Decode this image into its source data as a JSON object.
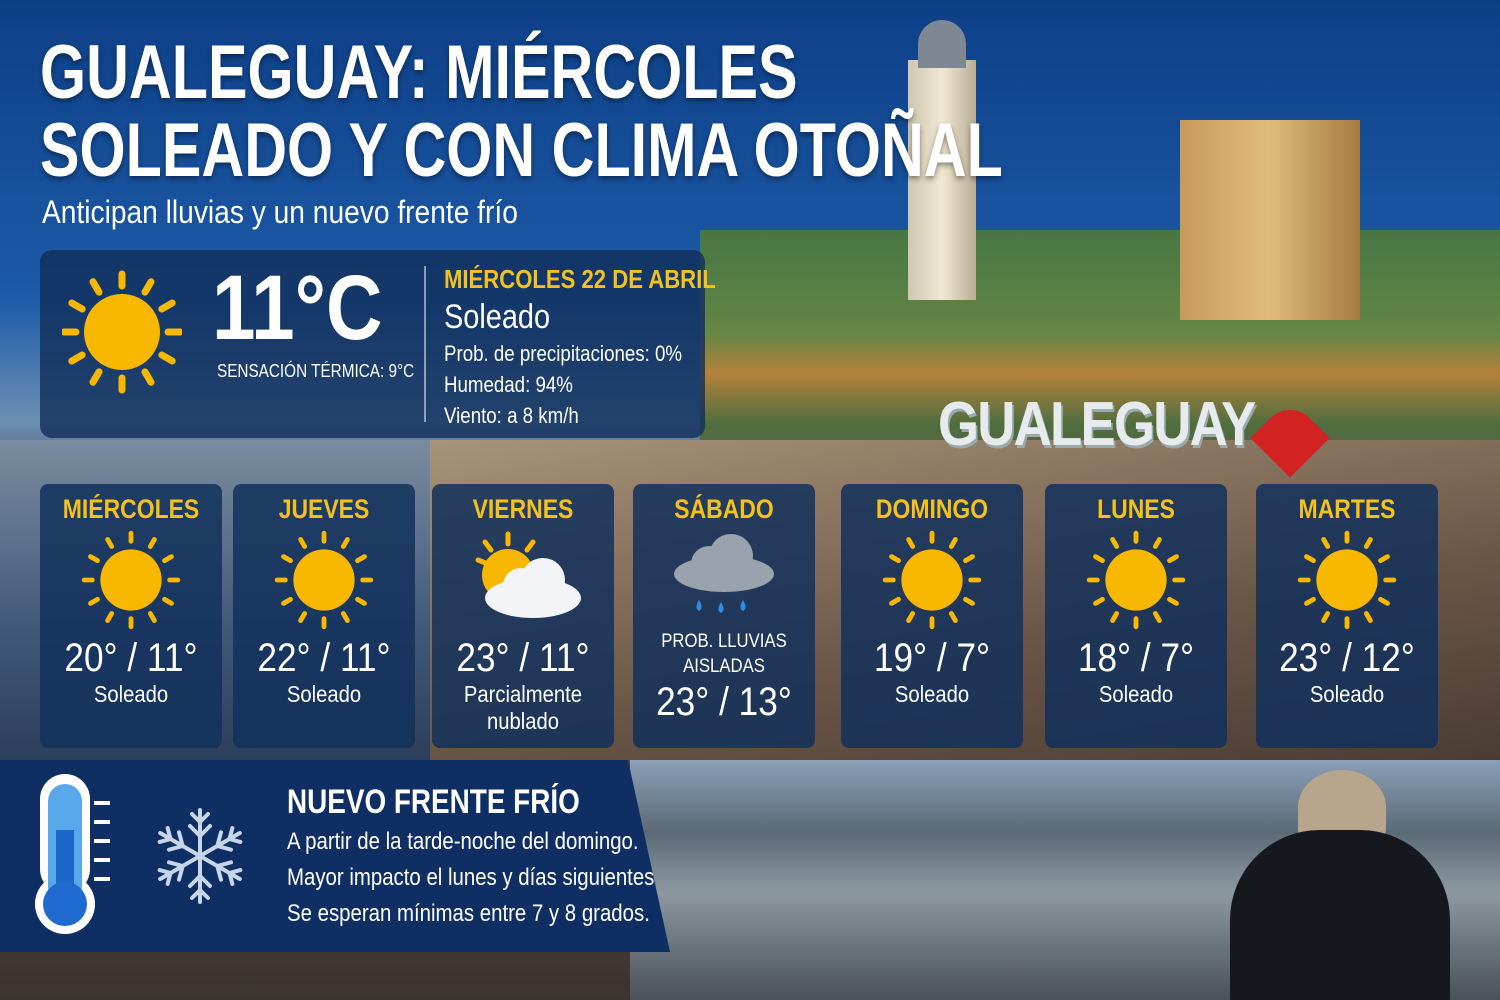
{
  "header": {
    "title_line1": "GUALEGUAY: MIÉRCOLES",
    "title_line2": "SOLEADO Y CON CLIMA OTOÑAL",
    "subtitle": "Anticipan lluvias y un nuevo frente frío"
  },
  "background": {
    "sign_text": "GUALEGUAY"
  },
  "current": {
    "icon": "sun-icon",
    "temperature": "11°C",
    "feels_like": "SENSACIÓN TÉRMICA: 9°C",
    "date": "MIÉRCOLES 22 DE ABRIL",
    "condition": "Soleado",
    "precipitation": "Prob. de precipitaciones: 0%",
    "humidity": "Humedad: 94%",
    "wind": "Viento: a 8 km/h"
  },
  "forecast": [
    {
      "day": "MIÉRCOLES",
      "icon": "sun-icon",
      "temps": "20° / 11°",
      "condition": "Soleado"
    },
    {
      "day": "JUEVES",
      "icon": "sun-icon",
      "temps": "22° / 11°",
      "condition": "Soleado"
    },
    {
      "day": "VIERNES",
      "icon": "partly-cloudy-icon",
      "temps": "23° / 11°",
      "condition": "Parcialmente nublado"
    },
    {
      "day": "SÁBADO",
      "icon": "rain-cloud-icon",
      "note": "PROB. LLUVIAS AISLADAS",
      "temps": "23° / 13°"
    },
    {
      "day": "DOMINGO",
      "icon": "sun-icon",
      "temps": "19° / 7°",
      "condition": "Soleado"
    },
    {
      "day": "LUNES",
      "icon": "sun-icon",
      "temps": "18° / 7°",
      "condition": "Soleado"
    },
    {
      "day": "MARTES",
      "icon": "sun-icon",
      "temps": "23° / 12°",
      "condition": "Soleado"
    }
  ],
  "cold_front": {
    "icons": [
      "thermometer-icon",
      "snowflake-icon"
    ],
    "title": "NUEVO FRENTE FRÍO",
    "lines": [
      "A partir de la tarde-noche del domingo.",
      "Mayor impacto el lunes y días siguientes.",
      "Se esperan mínimas entre 7 y 8 grados."
    ]
  },
  "colors": {
    "accent_yellow": "#f4c21a",
    "panel_blue": "#12305c",
    "sun": "#f9b800"
  }
}
